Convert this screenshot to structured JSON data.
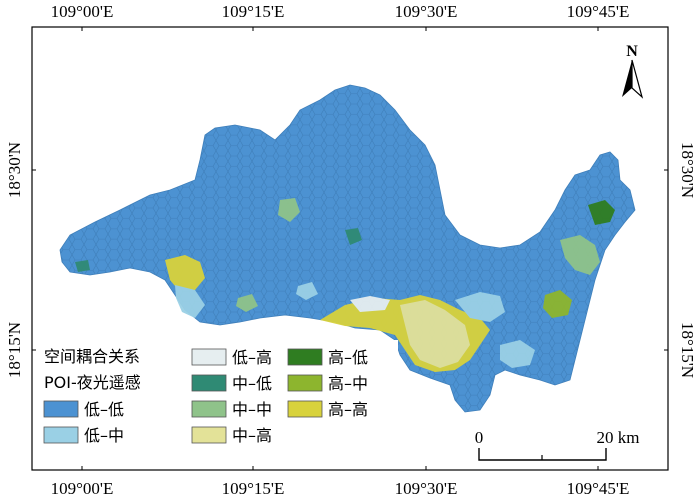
{
  "axes": {
    "top_ticks": [
      "109°00'E",
      "109°15'E",
      "109°30'E",
      "109°45'E"
    ],
    "bottom_ticks": [
      "109°00'E",
      "109°15'E",
      "109°30'E",
      "109°45'E"
    ],
    "left_ticks": [
      "18°30'N",
      "18°15'N"
    ],
    "right_ticks": [
      "18°30'N",
      "18°15'N"
    ]
  },
  "north_arrow": {
    "label": "N",
    "icon": "north-arrow-icon"
  },
  "scale_bar": {
    "start": "0",
    "end": "20 km"
  },
  "legend": {
    "title_line1": "空间耦合关系",
    "title_line2": "POI-夜光遥感",
    "items": [
      {
        "label": "低–低",
        "color": "#4c92d2"
      },
      {
        "label": "低–中",
        "color": "#9ad0e5"
      },
      {
        "label": "低–高",
        "color": "#e6eef0"
      },
      {
        "label": "中–低",
        "color": "#2f8a74"
      },
      {
        "label": "中–中",
        "color": "#8fc38a"
      },
      {
        "label": "中–高",
        "color": "#e3e298"
      },
      {
        "label": "高–低",
        "color": "#2f7d21"
      },
      {
        "label": "高–中",
        "color": "#8db52e"
      },
      {
        "label": "高–高",
        "color": "#d8d23c"
      }
    ]
  },
  "colors": {
    "base_region": "#4c92d2",
    "hex_outline": "#3f7fba",
    "frame": "#000000"
  }
}
